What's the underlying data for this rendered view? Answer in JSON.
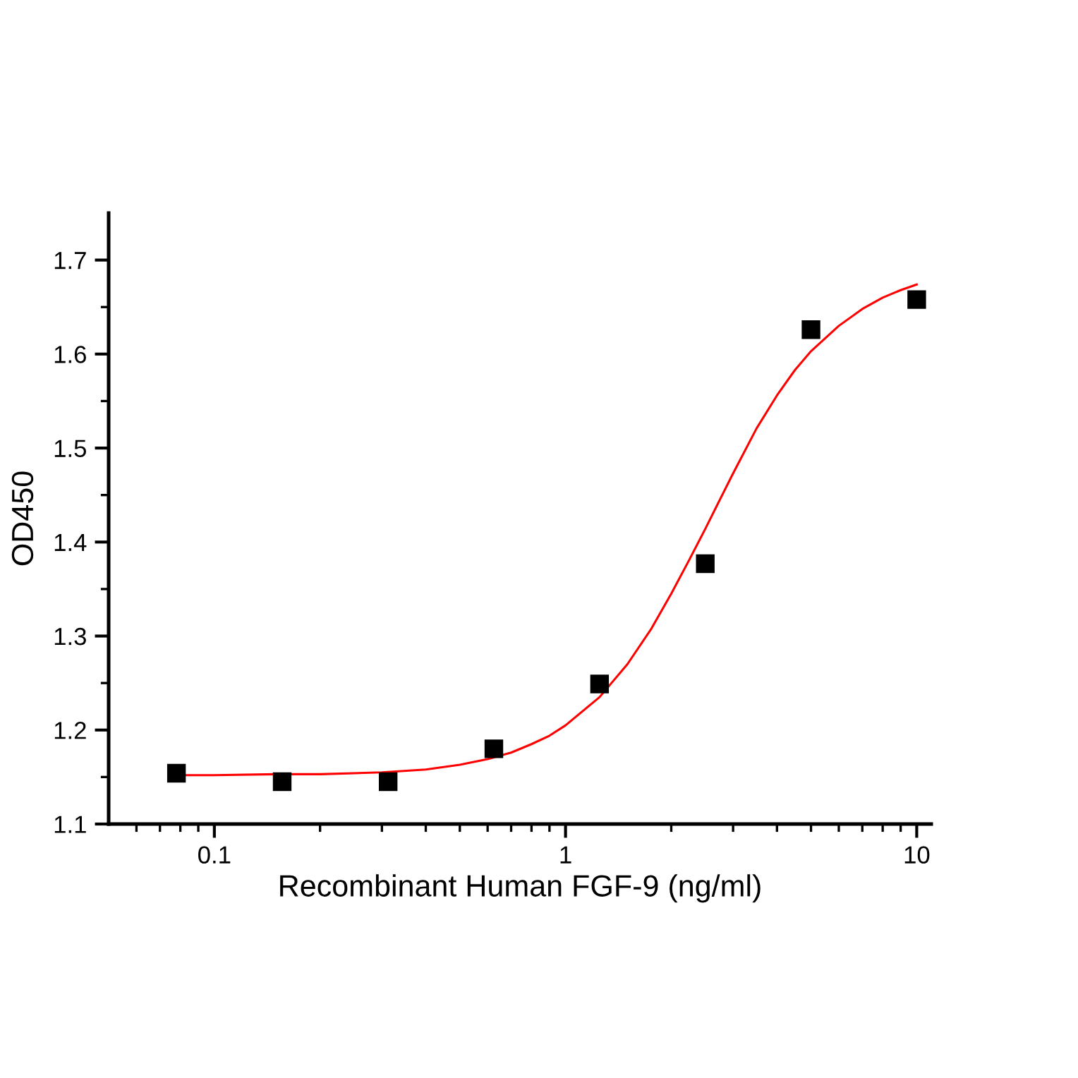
{
  "chart_data": {
    "type": "scatter",
    "xlabel": "Recombinant Human FGF-9 (ng/ml)",
    "ylabel": "OD450",
    "log": "x",
    "grid": false,
    "xlim": [
      0.05,
      11
    ],
    "ylim": [
      1.1,
      1.75
    ],
    "xticks": [
      {
        "value": 0.06,
        "label": null
      },
      {
        "value": 0.07,
        "label": null
      },
      {
        "value": 0.08,
        "label": null
      },
      {
        "value": 0.09,
        "label": null
      },
      0.1,
      {
        "value": 0.2,
        "label": null
      },
      {
        "value": 0.3,
        "label": null
      },
      {
        "value": 0.4,
        "label": null
      },
      {
        "value": 0.5,
        "label": null
      },
      {
        "value": 0.6,
        "label": null
      },
      {
        "value": 0.7,
        "label": null
      },
      {
        "value": 0.8,
        "label": null
      },
      {
        "value": 0.9,
        "label": null
      },
      1,
      {
        "value": 2,
        "label": null
      },
      {
        "value": 3,
        "label": null
      },
      {
        "value": 4,
        "label": null
      },
      {
        "value": 5,
        "label": null
      },
      {
        "value": 6,
        "label": null
      },
      {
        "value": 7,
        "label": null
      },
      {
        "value": 8,
        "label": null
      },
      {
        "value": 9,
        "label": null
      },
      10
    ],
    "yticks": [
      1.1,
      {
        "value": 1.15,
        "label": null
      },
      1.2,
      {
        "value": 1.25,
        "label": null
      },
      1.3,
      {
        "value": 1.35,
        "label": null
      },
      1.4,
      {
        "value": 1.45,
        "label": null
      },
      1.5,
      {
        "value": 1.55,
        "label": null
      },
      1.6,
      {
        "value": 1.65,
        "label": null
      },
      1.7
    ],
    "series": [
      {
        "type": "line",
        "color": "#ff0000",
        "marker": "none",
        "line_style": "solid",
        "x": [
          0.078,
          0.1,
          0.15,
          0.2,
          0.3,
          0.4,
          0.5,
          0.6,
          0.7,
          0.8,
          0.9,
          1.0,
          1.25,
          1.5,
          1.75,
          2.0,
          2.25,
          2.5,
          2.75,
          3.0,
          3.5,
          4.0,
          4.5,
          5.0,
          6.0,
          7.0,
          8.0,
          9.0,
          10.0
        ],
        "values": [
          1.152,
          1.152,
          1.153,
          1.153,
          1.155,
          1.158,
          1.163,
          1.169,
          1.176,
          1.185,
          1.194,
          1.205,
          1.235,
          1.27,
          1.307,
          1.345,
          1.381,
          1.414,
          1.445,
          1.473,
          1.521,
          1.556,
          1.583,
          1.603,
          1.63,
          1.648,
          1.66,
          1.668,
          1.674
        ]
      },
      {
        "color": "#000000",
        "marker": "square",
        "x": [
          0.078,
          0.156,
          0.3125,
          0.625,
          1.25,
          2.5,
          5,
          10
        ],
        "values": [
          1.154,
          1.145,
          1.145,
          1.18,
          1.249,
          1.377,
          1.626,
          1.658
        ]
      }
    ]
  }
}
